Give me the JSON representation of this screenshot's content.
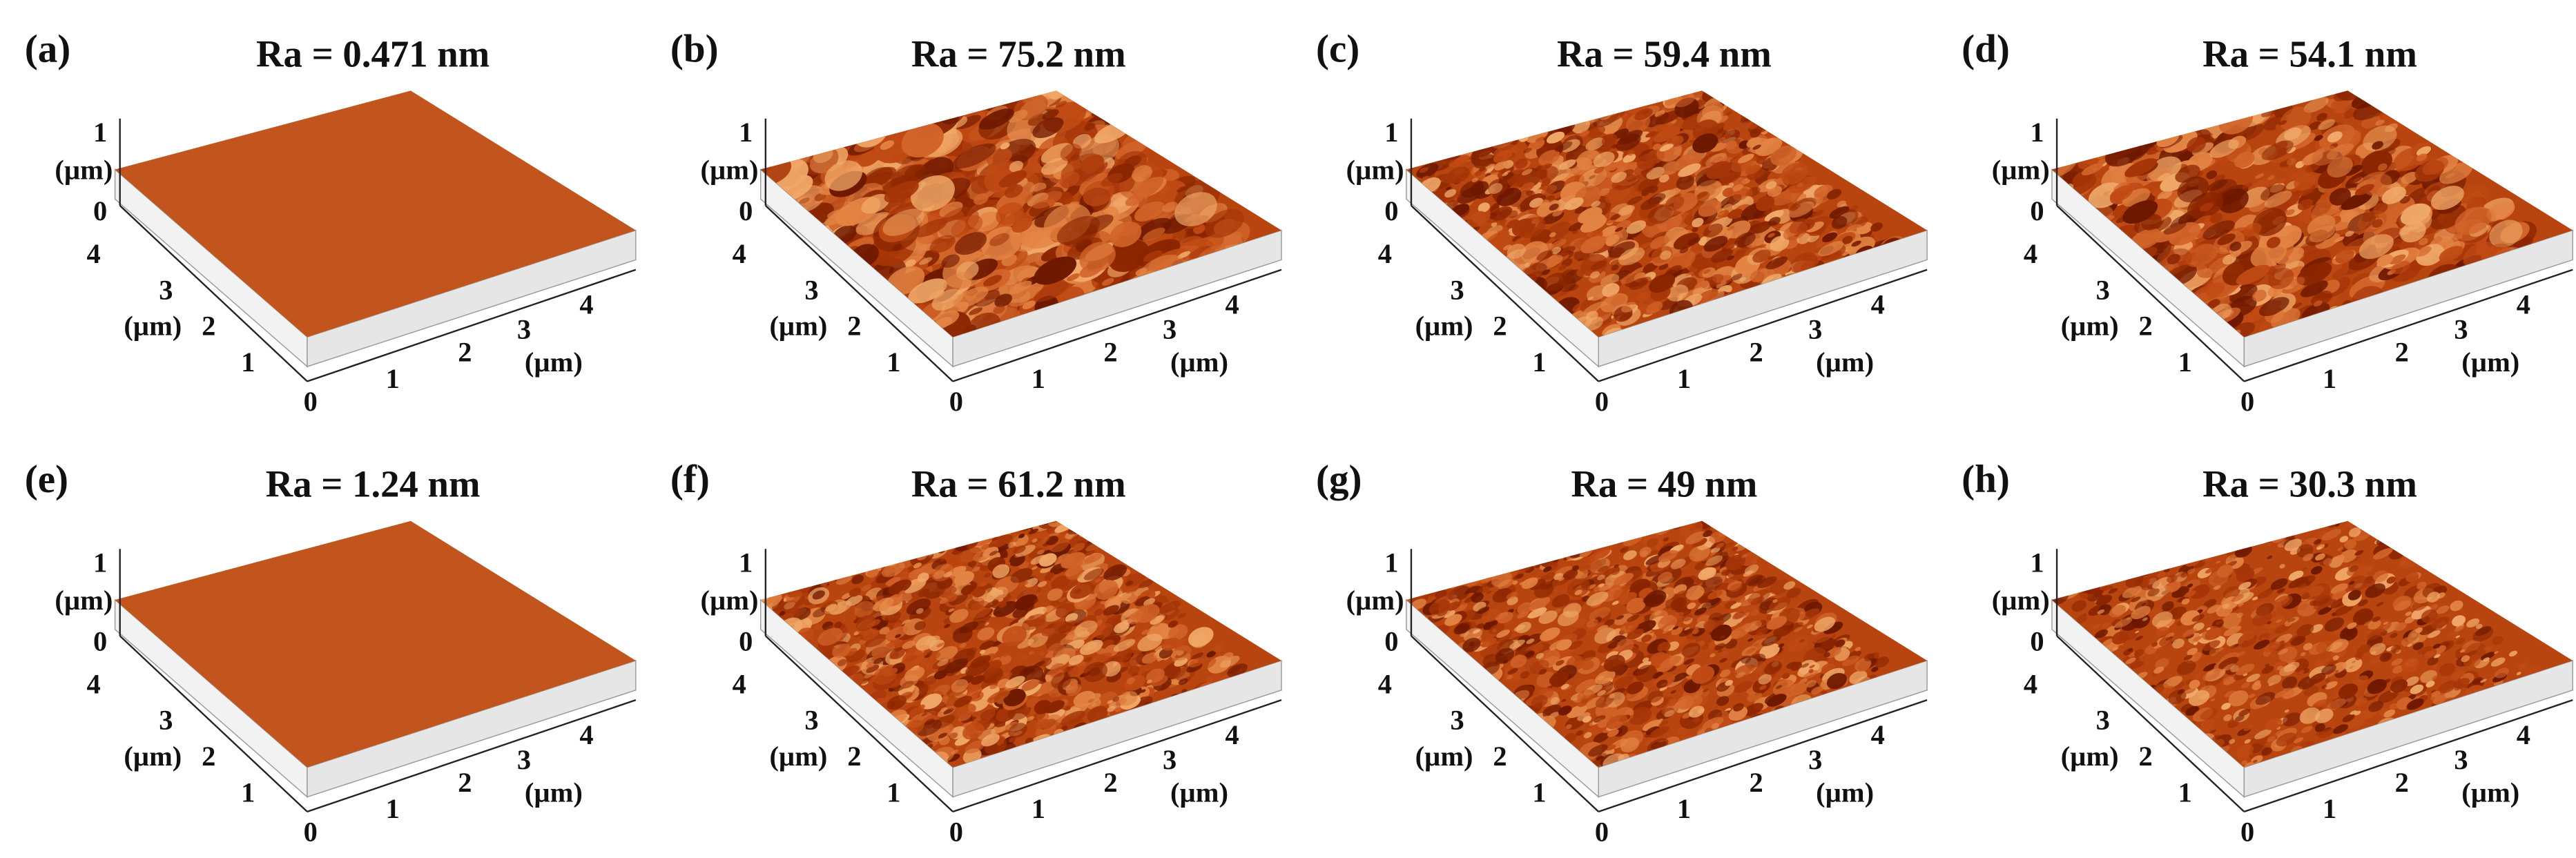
{
  "panels": [
    {
      "label": "(a)",
      "title": "Ra = 0.471 nm",
      "z_ticks": [
        "1",
        "0"
      ],
      "z_unit": "(µm)",
      "y_ticks": [
        "4",
        "3",
        "2",
        "1"
      ],
      "y_unit": "(µm)",
      "x_ticks": [
        "0",
        "1",
        "2",
        "3",
        "4"
      ],
      "x_unit": "(µm)"
    },
    {
      "label": "(b)",
      "title": "Ra = 75.2 nm",
      "z_ticks": [
        "1",
        "0"
      ],
      "z_unit": "(µm)",
      "y_ticks": [
        "4",
        "3",
        "2",
        "1"
      ],
      "y_unit": "(µm)",
      "x_ticks": [
        "0",
        "1",
        "2",
        "3",
        "4"
      ],
      "x_unit": "(µm)"
    },
    {
      "label": "(c)",
      "title": "Ra = 59.4 nm",
      "z_ticks": [
        "1",
        "0"
      ],
      "z_unit": "(µm)",
      "y_ticks": [
        "4",
        "3",
        "2",
        "1"
      ],
      "y_unit": "(µm)",
      "x_ticks": [
        "0",
        "1",
        "2",
        "3",
        "4"
      ],
      "x_unit": "(µm)"
    },
    {
      "label": "(d)",
      "title": "Ra = 54.1 nm",
      "z_ticks": [
        "1",
        "0"
      ],
      "z_unit": "(µm)",
      "y_ticks": [
        "4",
        "3",
        "2",
        "1"
      ],
      "y_unit": "(µm)",
      "x_ticks": [
        "0",
        "1",
        "2",
        "3",
        "4"
      ],
      "x_unit": "(µm)"
    },
    {
      "label": "(e)",
      "title": "Ra = 1.24 nm",
      "z_ticks": [
        "1",
        "0"
      ],
      "z_unit": "(µm)",
      "y_ticks": [
        "4",
        "3",
        "2",
        "1"
      ],
      "y_unit": "(µm)",
      "x_ticks": [
        "0",
        "1",
        "2",
        "3",
        "4"
      ],
      "x_unit": "(µm)"
    },
    {
      "label": "(f)",
      "title": "Ra = 61.2 nm",
      "z_ticks": [
        "1",
        "0"
      ],
      "z_unit": "(µm)",
      "y_ticks": [
        "4",
        "3",
        "2",
        "1"
      ],
      "y_unit": "(µm)",
      "x_ticks": [
        "0",
        "1",
        "2",
        "3",
        "4"
      ],
      "x_unit": "(µm)"
    },
    {
      "label": "(g)",
      "title": "Ra = 49 nm",
      "z_ticks": [
        "1",
        "0"
      ],
      "z_unit": "(µm)",
      "y_ticks": [
        "4",
        "3",
        "2",
        "1"
      ],
      "y_unit": "(µm)",
      "x_ticks": [
        "0",
        "1",
        "2",
        "3",
        "4"
      ],
      "x_unit": "(µm)"
    },
    {
      "label": "(h)",
      "title": "Ra = 30.3 nm",
      "z_ticks": [
        "1",
        "0"
      ],
      "z_unit": "(µm)",
      "y_ticks": [
        "4",
        "3",
        "2",
        "1"
      ],
      "y_unit": "(µm)",
      "x_ticks": [
        "0",
        "1",
        "2",
        "3",
        "4"
      ],
      "x_unit": "(µm)"
    }
  ]
}
